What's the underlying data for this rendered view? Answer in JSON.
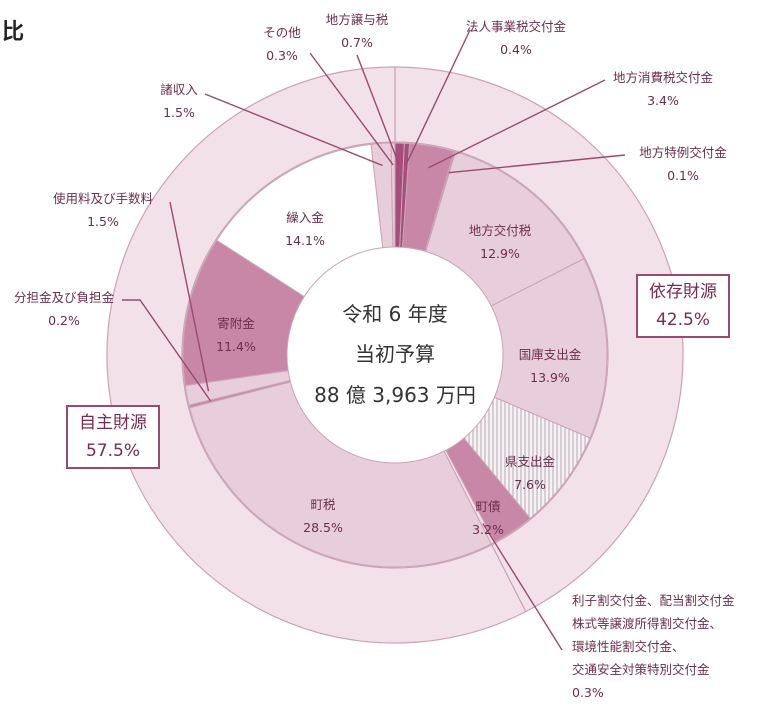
{
  "header": {
    "text": "比"
  },
  "center": {
    "line1": "令和 6 年度",
    "line2": "当初予算",
    "line3": "88 億 3,963 万円"
  },
  "groups": {
    "self": {
      "label": "自主財源",
      "value": "57.5%"
    },
    "dependent": {
      "label": "依存財源",
      "value": "42.5%"
    }
  },
  "chart_data": {
    "type": "pie",
    "title": "令和 6 年度 当初予算 88 億 3,963 万円",
    "outer_ring": [
      {
        "name": "依存財源",
        "value": 42.5
      },
      {
        "name": "自主財源",
        "value": 57.5
      }
    ],
    "inner_ring": [
      {
        "name": "地方譲与税",
        "value": 0.7
      },
      {
        "name": "法人事業税交付金",
        "value": 0.4
      },
      {
        "name": "地方消費税交付金",
        "value": 3.4
      },
      {
        "name": "地方特例交付金",
        "value": 0.1
      },
      {
        "name": "地方交付税",
        "value": 12.9
      },
      {
        "name": "国庫支出金",
        "value": 13.9
      },
      {
        "name": "県支出金",
        "value": 7.6
      },
      {
        "name": "町債",
        "value": 3.2
      },
      {
        "name": "利子割交付金、配当割交付金、株式等譲渡所得割交付金、環境性能割交付金、交通安全対策特別交付金",
        "value": 0.3
      },
      {
        "name": "町税",
        "value": 28.5
      },
      {
        "name": "分担金及び負担金",
        "value": 0.2
      },
      {
        "name": "使用料及び手数料",
        "value": 1.5
      },
      {
        "name": "寄附金",
        "value": 11.4
      },
      {
        "name": "繰入金",
        "value": 14.1
      },
      {
        "name": "諸収入",
        "value": 1.5
      },
      {
        "name": "その他",
        "value": 0.3
      }
    ],
    "labels": {
      "chiho_joyo": {
        "name": "地方譲与税",
        "pct": "0.7%"
      },
      "hojin": {
        "name": "法人事業税交付金",
        "pct": "0.4%"
      },
      "shohi": {
        "name": "地方消費税交付金",
        "pct": "3.4%"
      },
      "tokurei": {
        "name": "地方特例交付金",
        "pct": "0.1%"
      },
      "kofuzei": {
        "name": "地方交付税",
        "pct": "12.9%"
      },
      "kokko": {
        "name": "国庫支出金",
        "pct": "13.9%"
      },
      "ken": {
        "name": "県支出金",
        "pct": "7.6%"
      },
      "chosai": {
        "name": "町債",
        "pct": "3.2%"
      },
      "rishi": {
        "line1": "利子割交付金、配当割交付金",
        "line2": "株式等譲渡所得割交付金、",
        "line3": "環境性能割交付金、",
        "line4": "交通安全対策特別交付金",
        "pct": "0.3%"
      },
      "chozei": {
        "name": "町税",
        "pct": "28.5%"
      },
      "buntan": {
        "name": "分担金及び負担金",
        "pct": "0.2%"
      },
      "shiyo": {
        "name": "使用料及び手数料",
        "pct": "1.5%"
      },
      "kifu": {
        "name": "寄附金",
        "pct": "11.4%"
      },
      "kurii": {
        "name": "繰入金",
        "pct": "14.1%"
      },
      "sho": {
        "name": "諸収入",
        "pct": "1.5%"
      },
      "sonota": {
        "name": "その他",
        "pct": "0.3%"
      }
    },
    "colors": {
      "pale": "#f3e1ea",
      "light": "#e8cddb",
      "medium": "#c987a7",
      "dark": "#a84d7b",
      "stripe": "#cfc4cc",
      "white": "#ffffff",
      "line": "#9a4a6e",
      "border": "#c9a4b6",
      "text": "#6b2f4d"
    }
  }
}
